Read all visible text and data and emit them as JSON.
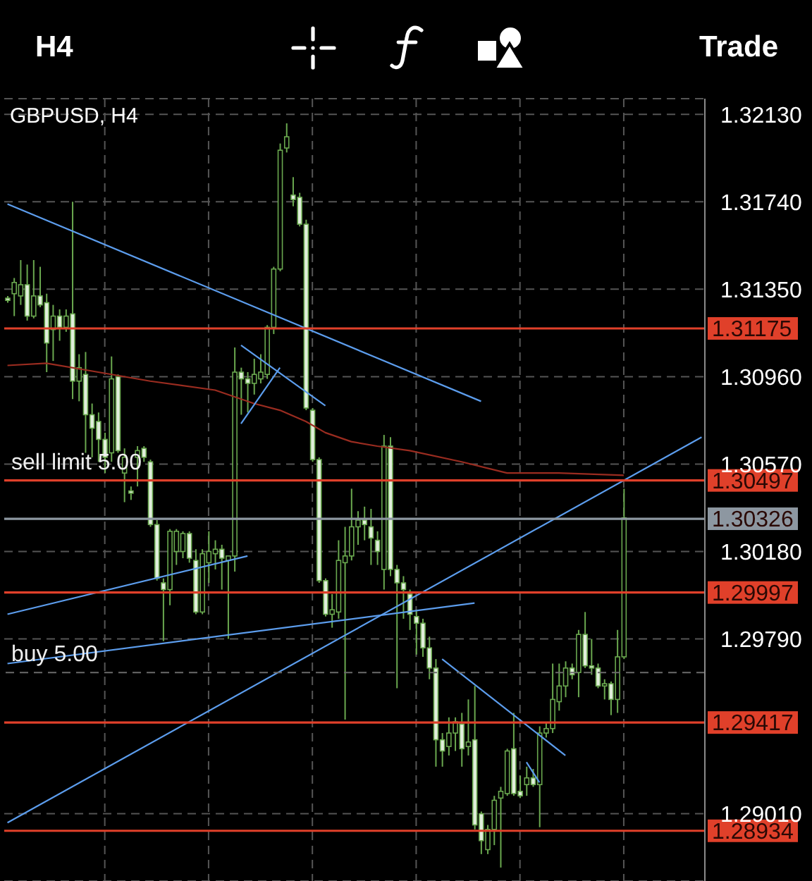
{
  "chart_data": {
    "type": "candlestick",
    "title": "GBPUSD, H4",
    "annotations": [
      "H4",
      "Trade",
      {
        "text": "sell limit 5.00",
        "y": 1.30497
      },
      {
        "text": "buy 5.00",
        "y": 1.2964
      }
    ],
    "categories": [
      null,
      null,
      null,
      null,
      null,
      null,
      null,
      null,
      null,
      null,
      null,
      null,
      null,
      null,
      null,
      null,
      null,
      null,
      null,
      null,
      null,
      null,
      null,
      null,
      null,
      null,
      null,
      null,
      null,
      null,
      null,
      null,
      null,
      null,
      null,
      null,
      null,
      null,
      null,
      null,
      null,
      null,
      null,
      null,
      null,
      null,
      null,
      null,
      null,
      null,
      null,
      null,
      null,
      null,
      null,
      null,
      null,
      null,
      null,
      null,
      null,
      null,
      null,
      null,
      null,
      null,
      null,
      null,
      null,
      null,
      null,
      null,
      null,
      null,
      null,
      null,
      null,
      null,
      null,
      null,
      null,
      null,
      null,
      null,
      null,
      null,
      null,
      null,
      null,
      null,
      null,
      null,
      null,
      null,
      null,
      null,
      null,
      null,
      null,
      null,
      null,
      null,
      null,
      null,
      null,
      null,
      null,
      null
    ],
    "color": "#6aa84f",
    "ohlc": [
      [
        1.3131,
        1.3132,
        1.3129,
        1.313
      ],
      [
        1.3133,
        1.314,
        1.3123,
        1.3138
      ],
      [
        1.3132,
        1.3148,
        1.3128,
        1.3137
      ],
      [
        1.3137,
        1.3146,
        1.3121,
        1.3123
      ],
      [
        1.3123,
        1.3148,
        1.3122,
        1.3132
      ],
      [
        1.3132,
        1.3145,
        1.3127,
        1.3128
      ],
      [
        1.3129,
        1.3133,
        1.3098,
        1.3111
      ],
      [
        1.3117,
        1.3128,
        1.3103,
        1.3123
      ],
      [
        1.3123,
        1.3126,
        1.3112,
        1.3118
      ],
      [
        1.3118,
        1.3126,
        1.3116,
        1.3123
      ],
      [
        1.3124,
        1.3174,
        1.3086,
        1.3094
      ],
      [
        1.3094,
        1.3106,
        1.3085,
        1.31
      ],
      [
        1.3097,
        1.3107,
        1.3062,
        1.3079
      ],
      [
        1.3079,
        1.3084,
        1.306,
        1.3073
      ],
      [
        1.3076,
        1.308,
        1.3058,
        1.3068
      ],
      [
        1.3068,
        1.3071,
        1.3053,
        1.306
      ],
      [
        1.3062,
        1.3105,
        1.3058,
        1.3095
      ],
      [
        1.3096,
        1.3097,
        1.3062,
        1.3063
      ],
      [
        1.3053,
        1.3064,
        1.304,
        1.306
      ],
      [
        1.3045,
        1.3047,
        1.3041,
        1.3044
      ],
      [
        1.306,
        1.3065,
        1.3047,
        1.3063
      ],
      [
        1.3064,
        1.3065,
        1.3058,
        1.306
      ],
      [
        1.3058,
        1.3059,
        1.3029,
        1.303
      ],
      [
        1.303,
        1.3032,
        1.3005,
        1.3006
      ],
      [
        1.3004,
        1.3006,
        1.2978,
        1.3001
      ],
      [
        1.3001,
        1.3028,
        1.2994,
        1.3027
      ],
      [
        1.3018,
        1.3028,
        1.3012,
        1.3027
      ],
      [
        1.3018,
        1.3027,
        1.3015,
        1.3026
      ],
      [
        1.3026,
        1.3027,
        1.3013,
        1.3015
      ],
      [
        1.3014,
        1.3019,
        1.299,
        1.2991
      ],
      [
        1.2991,
        1.3019,
        1.299,
        1.3017
      ],
      [
        1.3013,
        1.3027,
        1.3004,
        1.3018
      ],
      [
        1.3017,
        1.3023,
        1.301,
        1.3019
      ],
      [
        1.3019,
        1.3021,
        1.3001,
        1.3015
      ],
      [
        1.3014,
        1.3016,
        1.2979,
        1.3016
      ],
      [
        1.3016,
        1.3109,
        1.3009,
        1.3098
      ],
      [
        1.3098,
        1.31,
        1.3079,
        1.3095
      ],
      [
        1.3095,
        1.3098,
        1.308,
        1.3093
      ],
      [
        1.3093,
        1.3104,
        1.3088,
        1.3097
      ],
      [
        1.3095,
        1.3106,
        1.3093,
        1.3098
      ],
      [
        1.3097,
        1.3119,
        1.3095,
        1.3118
      ],
      [
        1.3118,
        1.3145,
        1.3115,
        1.3144
      ],
      [
        1.3144,
        1.32,
        1.3143,
        1.3197
      ],
      [
        1.3198,
        1.3209,
        1.3196,
        1.3203
      ],
      [
        1.3177,
        1.3185,
        1.3172,
        1.3175
      ],
      [
        1.3176,
        1.3178,
        1.3163,
        1.3164
      ],
      [
        1.3164,
        1.3166,
        1.3081,
        1.3082
      ],
      [
        1.3081,
        1.3082,
        1.3058,
        1.3059
      ],
      [
        1.3059,
        1.306,
        1.3004,
        1.3005
      ],
      [
        1.3005,
        1.3006,
        1.2989,
        1.299
      ],
      [
        1.299,
        1.2999,
        1.2984,
        1.2992
      ],
      [
        1.2991,
        1.3023,
        1.2988,
        1.3014
      ],
      [
        1.3013,
        1.3029,
        1.2943,
        1.3016
      ],
      [
        1.3016,
        1.3046,
        1.3014,
        1.3029
      ],
      [
        1.3029,
        1.3036,
        1.3021,
        1.3032
      ],
      [
        1.3032,
        1.3038,
        1.3023,
        1.303
      ],
      [
        1.3029,
        1.3037,
        1.3012,
        1.3024
      ],
      [
        1.3023,
        1.3027,
        1.3012,
        1.3018
      ],
      [
        1.301,
        1.307,
        1.3001,
        1.3065
      ],
      [
        1.3065,
        1.3069,
        1.3007,
        1.301
      ],
      [
        1.301,
        1.3012,
        1.2957,
        1.3004
      ],
      [
        1.3004,
        1.3007,
        1.2988,
        1.3001
      ],
      [
        1.2999,
        1.3001,
        1.2983,
        1.299
      ],
      [
        1.2989,
        1.2992,
        1.2972,
        1.2986
      ],
      [
        1.2986,
        1.2988,
        1.2971,
        1.2975
      ],
      [
        1.2975,
        1.298,
        1.2961,
        1.2966
      ],
      [
        1.2966,
        1.297,
        1.2922,
        1.2934
      ],
      [
        1.2934,
        1.2937,
        1.2922,
        1.2929
      ],
      [
        1.2931,
        1.2944,
        1.2927,
        1.2937
      ],
      [
        1.2937,
        1.2944,
        1.2929,
        1.2942
      ],
      [
        1.2941,
        1.2946,
        1.2922,
        1.293
      ],
      [
        1.2931,
        1.2952,
        1.2927,
        1.2933
      ],
      [
        1.2934,
        1.2958,
        1.2894,
        1.2896
      ],
      [
        1.2901,
        1.2902,
        1.2883,
        1.2889
      ],
      [
        1.2885,
        1.2896,
        1.2883,
        1.2894
      ],
      [
        1.2894,
        1.2909,
        1.2887,
        1.2907
      ],
      [
        1.2908,
        1.2913,
        1.2877,
        1.2911
      ],
      [
        1.291,
        1.293,
        1.2909,
        1.2929
      ],
      [
        1.293,
        1.2946,
        1.2909,
        1.291
      ],
      [
        1.2911,
        1.2918,
        1.2908,
        1.2909
      ],
      [
        1.2914,
        1.2922,
        1.2909,
        1.2917
      ],
      [
        1.2917,
        1.2921,
        1.2913,
        1.2914
      ],
      [
        1.2914,
        1.294,
        1.2895,
        1.2937
      ],
      [
        1.2937,
        1.2942,
        1.2935,
        1.2939
      ],
      [
        1.2939,
        1.2968,
        1.2937,
        1.2952
      ],
      [
        1.2951,
        1.2968,
        1.2947,
        1.2958
      ],
      [
        1.2958,
        1.2969,
        1.2953,
        1.2966
      ],
      [
        1.2966,
        1.2968,
        1.2961,
        1.2963
      ],
      [
        1.2964,
        1.2983,
        1.2953,
        1.2981
      ],
      [
        1.2981,
        1.2991,
        1.2966,
        1.2967
      ],
      [
        1.2967,
        1.2979,
        1.2963,
        1.2966
      ],
      [
        1.2966,
        1.2968,
        1.2957,
        1.2958
      ],
      [
        1.2958,
        1.2961,
        1.2952,
        1.2959
      ],
      [
        1.2959,
        1.296,
        1.2945,
        1.2952
      ],
      [
        1.2952,
        1.2983,
        1.2946,
        1.2971
      ],
      [
        1.2971,
        1.3046,
        1.297,
        1.3033
      ],
      null,
      null,
      null,
      null,
      null,
      null,
      null,
      null,
      null,
      null,
      null,
      null
    ],
    "series": [
      {
        "type": "line",
        "color": "#9a2c20",
        "values": [
          1.3101,
          null,
          null,
          null,
          null,
          null,
          1.3102,
          null,
          null,
          null,
          null,
          null,
          null,
          null,
          1.3098,
          null,
          null,
          null,
          null,
          null,
          null,
          null,
          1.3094,
          null,
          null,
          null,
          null,
          null,
          null,
          null,
          null,
          null,
          1.309,
          null,
          null,
          null,
          null,
          null,
          1.3084,
          null,
          null,
          null,
          1.3081,
          null,
          null,
          null,
          1.3076,
          null,
          null,
          1.3071,
          null,
          null,
          null,
          1.3067,
          null,
          null,
          null,
          1.3065,
          null,
          null,
          null,
          null,
          1.3063,
          null,
          null,
          null,
          null,
          null,
          null,
          null,
          1.3058,
          null,
          null,
          null,
          null,
          null,
          null,
          1.3053,
          null,
          null,
          null,
          null,
          null,
          null,
          null,
          1.3053,
          null,
          null,
          null,
          null,
          null,
          null,
          null,
          null,
          null,
          1.3052,
          null,
          null,
          null,
          null,
          null,
          null,
          null,
          null,
          null,
          null,
          null,
          null
        ]
      },
      {
        "type": "line",
        "color": "#5c9ded",
        "values": [
          1.3173,
          null,
          null,
          null,
          null,
          null,
          null,
          null,
          null,
          null,
          null,
          null,
          null,
          null,
          null,
          null,
          null,
          null,
          null,
          null,
          null,
          null,
          null,
          null,
          null,
          null,
          null,
          null,
          null,
          null,
          null,
          null,
          null,
          null,
          null,
          null,
          null,
          null,
          null,
          null,
          null,
          null,
          null,
          null,
          null,
          null,
          null,
          null,
          null,
          null,
          null,
          null,
          null,
          null,
          null,
          null,
          null,
          null,
          null,
          null,
          null,
          null,
          null,
          null,
          null,
          null,
          null,
          null,
          null,
          null,
          null,
          null,
          null,
          1.3085,
          null,
          null,
          null,
          null,
          null,
          null,
          null,
          null,
          null,
          null,
          null,
          null,
          null,
          null,
          null,
          null,
          null,
          null,
          null,
          null,
          null,
          null,
          null,
          null,
          null,
          null,
          null,
          null,
          null,
          null,
          null,
          null,
          null,
          null
        ]
      },
      {
        "type": "line",
        "color": "#5c9ded",
        "values": [
          null,
          null,
          null,
          null,
          null,
          null,
          null,
          null,
          null,
          null,
          null,
          null,
          null,
          null,
          null,
          null,
          null,
          null,
          null,
          null,
          null,
          null,
          null,
          null,
          null,
          null,
          null,
          null,
          null,
          null,
          null,
          null,
          null,
          null,
          null,
          null,
          1.311,
          null,
          null,
          null,
          null,
          null,
          null,
          null,
          null,
          null,
          null,
          null,
          null,
          1.3083,
          null,
          null,
          null,
          null,
          null,
          null,
          null,
          null,
          null,
          null,
          null,
          null,
          null,
          null,
          null,
          null,
          null,
          null,
          null,
          null,
          null,
          null,
          null,
          null,
          null,
          null,
          null,
          null,
          null,
          null,
          null,
          null,
          null,
          null,
          null,
          null,
          null,
          null,
          null,
          null,
          null,
          null,
          null,
          null,
          null,
          null,
          null,
          null,
          null,
          null,
          null,
          null,
          null,
          null,
          null,
          null,
          null,
          null
        ]
      },
      {
        "type": "line",
        "color": "#5c9ded",
        "values": [
          null,
          null,
          null,
          null,
          null,
          null,
          null,
          null,
          null,
          null,
          null,
          null,
          null,
          null,
          null,
          null,
          null,
          null,
          null,
          null,
          null,
          null,
          null,
          null,
          null,
          null,
          null,
          null,
          null,
          null,
          null,
          null,
          null,
          null,
          null,
          null,
          1.3075,
          null,
          null,
          null,
          null,
          null,
          1.31,
          null,
          null,
          null,
          null,
          null,
          null,
          null,
          null,
          null,
          null,
          null,
          null,
          null,
          null,
          null,
          null,
          null,
          null,
          null,
          null,
          null,
          null,
          null,
          null,
          null,
          null,
          null,
          null,
          null,
          null,
          null,
          null,
          null,
          null,
          null,
          null,
          null,
          null,
          null,
          null,
          null,
          null,
          null,
          null,
          null,
          null,
          null,
          null,
          null,
          null,
          null,
          null,
          null,
          null,
          null,
          null,
          null,
          null,
          null,
          null,
          null,
          null,
          null,
          null,
          null
        ]
      },
      {
        "type": "line",
        "color": "#5c9ded",
        "values": [
          1.299,
          null,
          null,
          null,
          null,
          null,
          null,
          null,
          null,
          null,
          null,
          null,
          null,
          null,
          null,
          null,
          null,
          null,
          null,
          null,
          null,
          null,
          null,
          null,
          null,
          null,
          null,
          null,
          null,
          null,
          null,
          null,
          null,
          null,
          null,
          null,
          null,
          1.3016,
          null,
          null,
          null,
          null,
          null,
          null,
          null,
          null,
          null,
          null,
          null,
          null,
          null,
          null,
          null,
          null,
          null,
          null,
          null,
          null,
          null,
          null,
          null,
          null,
          null,
          null,
          null,
          null,
          null,
          null,
          null,
          null,
          null,
          null,
          null,
          null,
          null,
          null,
          null,
          null,
          null,
          null,
          null,
          null,
          null,
          null,
          null,
          null,
          null,
          null,
          null,
          null,
          null,
          null,
          null,
          null,
          null,
          null,
          null,
          null,
          null,
          null,
          null,
          null,
          null,
          null,
          null,
          null,
          null,
          null
        ]
      },
      {
        "type": "line",
        "color": "#5c9ded",
        "values": [
          1.2968,
          null,
          null,
          null,
          null,
          null,
          null,
          null,
          null,
          null,
          null,
          null,
          null,
          null,
          null,
          null,
          null,
          null,
          null,
          null,
          null,
          null,
          null,
          null,
          null,
          null,
          null,
          null,
          null,
          null,
          null,
          null,
          null,
          null,
          null,
          null,
          null,
          null,
          null,
          null,
          null,
          null,
          null,
          null,
          null,
          null,
          null,
          null,
          null,
          null,
          null,
          null,
          null,
          null,
          null,
          null,
          null,
          null,
          null,
          null,
          null,
          null,
          null,
          null,
          null,
          null,
          null,
          null,
          null,
          null,
          null,
          null,
          1.2995,
          null,
          null,
          null,
          null,
          null,
          null,
          null,
          null,
          null,
          null,
          null,
          null,
          null,
          null,
          null,
          null,
          null,
          null,
          null,
          null,
          null,
          null,
          null,
          null,
          null,
          null,
          null,
          null,
          null,
          null,
          null,
          null,
          null,
          null,
          null
        ]
      },
      {
        "type": "line",
        "color": "#5c9ded",
        "values": [
          1.2897,
          null,
          null,
          null,
          null,
          null,
          null,
          null,
          null,
          null,
          null,
          null,
          null,
          null,
          null,
          null,
          null,
          null,
          null,
          null,
          null,
          null,
          null,
          null,
          null,
          null,
          null,
          null,
          null,
          null,
          null,
          null,
          null,
          null,
          null,
          null,
          null,
          null,
          null,
          null,
          null,
          null,
          null,
          null,
          null,
          null,
          null,
          null,
          null,
          null,
          null,
          null,
          null,
          null,
          null,
          null,
          null,
          null,
          null,
          null,
          null,
          null,
          null,
          null,
          null,
          null,
          null,
          null,
          null,
          null,
          null,
          null,
          null,
          null,
          null,
          null,
          null,
          null,
          null,
          null,
          null,
          null,
          null,
          null,
          null,
          null,
          null,
          null,
          null,
          null,
          null,
          null,
          null,
          null,
          null,
          null,
          null,
          null,
          null,
          null,
          null,
          null,
          null,
          null,
          null,
          null,
          null,
          1.3069
        ]
      },
      {
        "type": "line",
        "color": "#5c9ded",
        "values": [
          null,
          null,
          null,
          null,
          null,
          null,
          null,
          null,
          null,
          null,
          null,
          null,
          null,
          null,
          null,
          null,
          null,
          null,
          null,
          null,
          null,
          null,
          null,
          null,
          null,
          null,
          null,
          null,
          null,
          null,
          null,
          null,
          null,
          null,
          null,
          null,
          null,
          null,
          null,
          null,
          null,
          null,
          null,
          null,
          null,
          null,
          null,
          null,
          null,
          null,
          null,
          null,
          null,
          null,
          null,
          null,
          null,
          null,
          null,
          null,
          null,
          null,
          null,
          null,
          null,
          null,
          null,
          1.297,
          null,
          null,
          null,
          null,
          null,
          null,
          null,
          null,
          null,
          null,
          null,
          null,
          null,
          null,
          null,
          null,
          null,
          null,
          1.2927,
          null,
          null,
          null,
          null,
          null,
          null,
          null,
          null,
          null,
          null,
          null,
          null,
          null,
          null,
          null,
          null,
          null,
          null,
          null,
          null,
          null
        ]
      },
      {
        "type": "line",
        "color": "#5c9ded",
        "values": [
          null,
          null,
          null,
          null,
          null,
          null,
          null,
          null,
          null,
          null,
          null,
          null,
          null,
          null,
          null,
          null,
          null,
          null,
          null,
          null,
          null,
          null,
          null,
          null,
          null,
          null,
          null,
          null,
          null,
          null,
          null,
          null,
          null,
          null,
          null,
          null,
          null,
          null,
          null,
          null,
          null,
          null,
          null,
          null,
          null,
          null,
          null,
          null,
          null,
          null,
          null,
          null,
          null,
          null,
          null,
          null,
          null,
          null,
          null,
          null,
          null,
          null,
          null,
          null,
          null,
          null,
          null,
          null,
          null,
          null,
          null,
          null,
          null,
          null,
          null,
          null,
          null,
          null,
          null,
          null,
          1.2924,
          null,
          1.2915,
          null,
          null,
          null,
          null,
          null,
          null,
          null,
          null,
          null,
          null,
          null,
          null,
          null,
          null,
          null,
          null,
          null,
          null,
          null,
          null,
          null,
          null,
          null,
          null,
          null
        ]
      }
    ],
    "ylim": [
      1.2871,
      1.322
    ],
    "yticks": [
      {
        "value": 1.3213,
        "label": "1.32130"
      },
      {
        "value": 1.3174,
        "label": "1.31740"
      },
      {
        "value": 1.3135,
        "label": "1.31350"
      },
      {
        "value": 1.3096,
        "label": "1.30960"
      },
      {
        "value": 1.3057,
        "label": "1.30570"
      },
      {
        "value": 1.3018,
        "label": "1.30180"
      },
      {
        "value": 1.2979,
        "label": "1.29790"
      },
      {
        "value": 1.2901,
        "label": "1.29010"
      }
    ],
    "ref_lines": [
      {
        "axis": "y",
        "value": 1.31175,
        "label": "1.31175",
        "color": "#e0402a"
      },
      {
        "axis": "y",
        "value": 1.30497,
        "label": "1.30497",
        "color": "#e0402a"
      },
      {
        "axis": "y",
        "value": 1.30326,
        "label": "1.30326",
        "color": "#8d97a1"
      },
      {
        "axis": "y",
        "value": 1.29997,
        "label": "1.29997",
        "color": "#e0402a"
      },
      {
        "axis": "y",
        "value": 1.29417,
        "label": "1.29417",
        "color": "#e0402a"
      },
      {
        "axis": "y",
        "value": 1.28934,
        "label": "1.28934",
        "color": "#e0402a"
      },
      {
        "axis": "y",
        "value": 1.2964,
        "color": "#6b6b6b",
        "line_style": "dashed"
      }
    ],
    "grid": true,
    "tick_labels": "y"
  }
}
